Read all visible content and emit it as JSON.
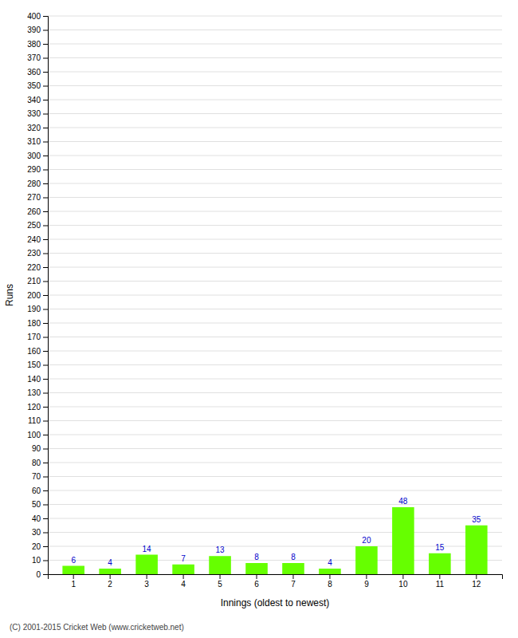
{
  "chart_data": {
    "type": "bar",
    "xlabel": "Innings (oldest to newest)",
    "ylabel": "Runs",
    "categories": [
      1,
      2,
      3,
      4,
      5,
      6,
      7,
      8,
      9,
      10,
      11,
      12
    ],
    "values": [
      6,
      4,
      14,
      7,
      13,
      8,
      8,
      4,
      20,
      48,
      15,
      35
    ],
    "color": "#66ff00",
    "ylim": [
      0,
      400
    ],
    "yticks": [
      0,
      10,
      20,
      30,
      40,
      50,
      60,
      70,
      80,
      90,
      100,
      110,
      120,
      130,
      140,
      150,
      160,
      170,
      180,
      190,
      200,
      210,
      220,
      230,
      240,
      250,
      260,
      270,
      280,
      290,
      300,
      310,
      320,
      330,
      340,
      350,
      360,
      370,
      380,
      390,
      400
    ],
    "grid": true,
    "data_labels": true,
    "annotations": [
      "(C) 2001-2015 Cricket Web (www.cricketweb.net)"
    ]
  }
}
